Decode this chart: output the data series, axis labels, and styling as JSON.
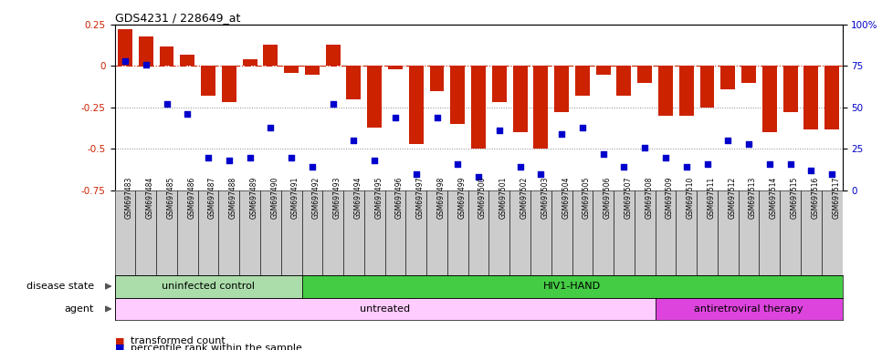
{
  "title": "GDS4231 / 228649_at",
  "samples": [
    "GSM697483",
    "GSM697484",
    "GSM697485",
    "GSM697486",
    "GSM697487",
    "GSM697488",
    "GSM697489",
    "GSM697490",
    "GSM697491",
    "GSM697492",
    "GSM697493",
    "GSM697494",
    "GSM697495",
    "GSM697496",
    "GSM697497",
    "GSM697498",
    "GSM697499",
    "GSM697500",
    "GSM697501",
    "GSM697502",
    "GSM697503",
    "GSM697504",
    "GSM697505",
    "GSM697506",
    "GSM697507",
    "GSM697508",
    "GSM697509",
    "GSM697510",
    "GSM697511",
    "GSM697512",
    "GSM697513",
    "GSM697514",
    "GSM697515",
    "GSM697516",
    "GSM697517"
  ],
  "bar_values": [
    0.22,
    0.18,
    0.12,
    0.07,
    -0.18,
    -0.22,
    0.04,
    0.13,
    -0.04,
    -0.05,
    0.13,
    -0.2,
    -0.37,
    -0.02,
    -0.47,
    -0.15,
    -0.35,
    -0.5,
    -0.22,
    -0.4,
    -0.5,
    -0.28,
    -0.18,
    -0.05,
    -0.18,
    -0.1,
    -0.3,
    -0.3,
    -0.25,
    -0.14,
    -0.1,
    -0.4,
    -0.28,
    -0.38,
    -0.38
  ],
  "percentile_values": [
    78,
    76,
    52,
    46,
    20,
    18,
    20,
    38,
    20,
    14,
    52,
    30,
    18,
    44,
    10,
    44,
    16,
    8,
    36,
    14,
    10,
    34,
    38,
    22,
    14,
    26,
    20,
    14,
    16,
    30,
    28,
    16,
    16,
    12,
    10
  ],
  "bar_color": "#CC2200",
  "dot_color": "#0000CC",
  "ylim_left": [
    -0.75,
    0.25
  ],
  "ylim_right": [
    0,
    100
  ],
  "yticks_left": [
    -0.75,
    -0.5,
    -0.25,
    0.0,
    0.25
  ],
  "yticks_right": [
    0,
    25,
    50,
    75,
    100
  ],
  "ytick_labels_left": [
    "-0.75",
    "-0.5",
    "-0.25",
    "0",
    "0.25"
  ],
  "ytick_labels_right": [
    "0",
    "25",
    "50",
    "75",
    "100%"
  ],
  "hline_zero_color": "#CC2200",
  "hline_dotted_color": "#888888",
  "disease_state_groups": [
    {
      "label": "uninfected control",
      "start": 0,
      "end": 9,
      "color": "#aaddaa"
    },
    {
      "label": "HIV1-HAND",
      "start": 9,
      "end": 35,
      "color": "#44cc44"
    }
  ],
  "agent_groups": [
    {
      "label": "untreated",
      "start": 0,
      "end": 26,
      "color": "#ffccff"
    },
    {
      "label": "antiretroviral therapy",
      "start": 26,
      "end": 35,
      "color": "#dd44dd"
    }
  ],
  "legend_items": [
    {
      "label": "transformed count",
      "color": "#CC2200"
    },
    {
      "label": "percentile rank within the sample",
      "color": "#0000CC"
    }
  ],
  "disease_state_label": "disease state",
  "agent_label": "agent",
  "tick_box_color": "#cccccc",
  "background_color": "#ffffff"
}
